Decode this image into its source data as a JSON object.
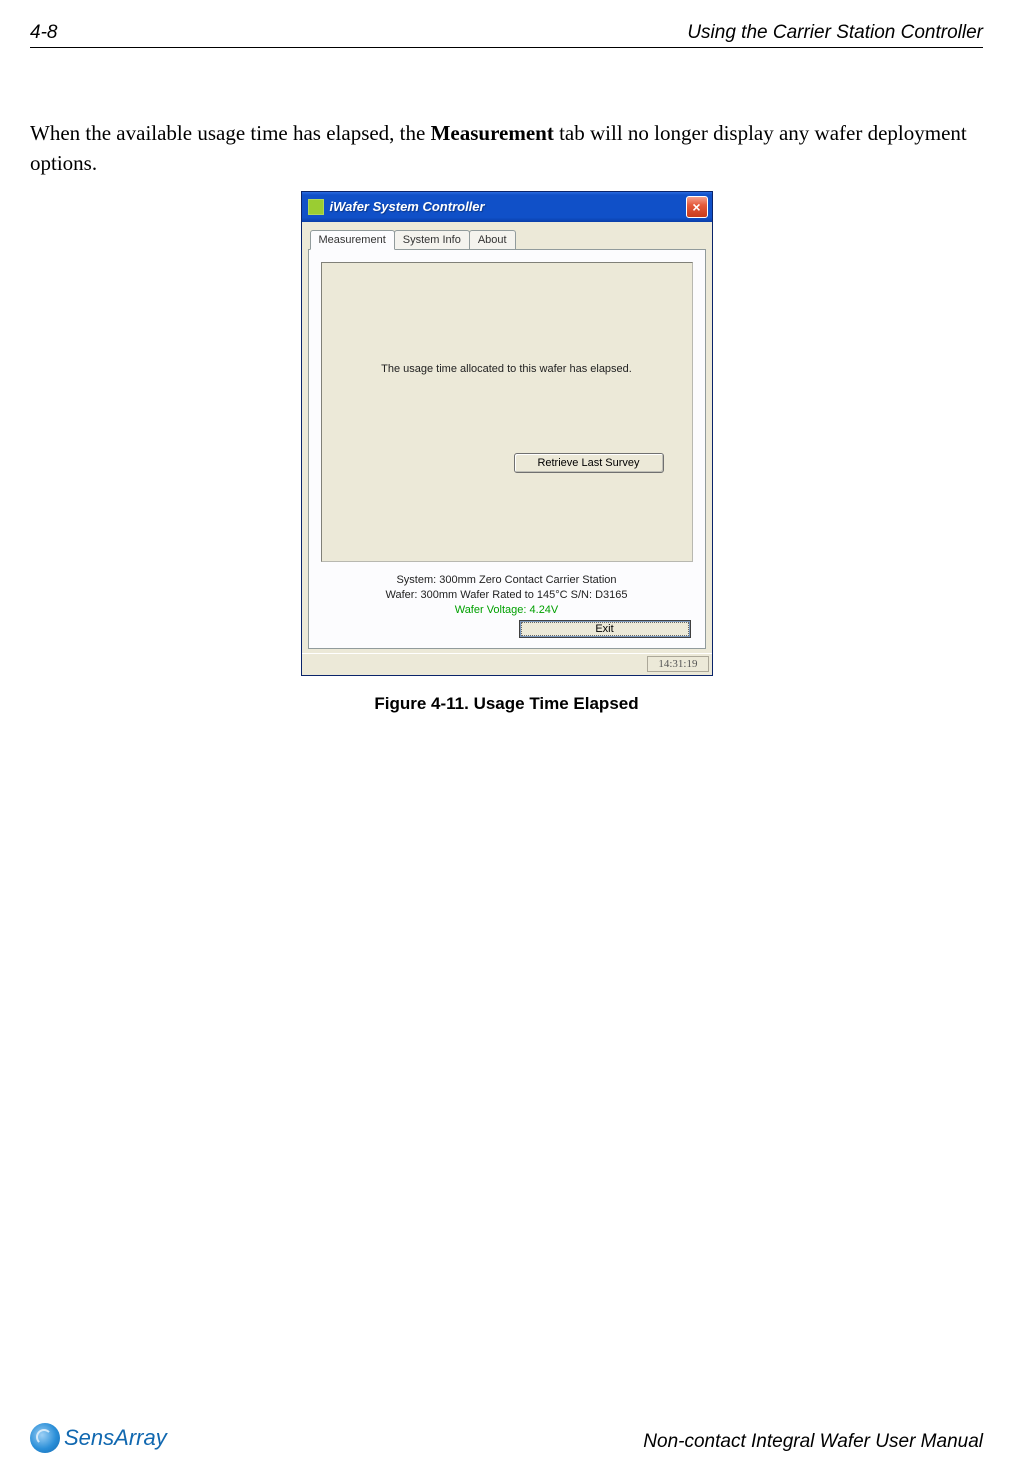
{
  "header": {
    "page_number": "4-8",
    "section_title": "Using the Carrier Station Controller"
  },
  "body": {
    "para_prefix": "When the available usage time has elapsed, the ",
    "para_bold": "Measurement",
    "para_suffix": " tab will no longer display any wafer deployment options."
  },
  "window": {
    "title": "iWafer System Controller",
    "tabs": {
      "measurement": "Measurement",
      "system_info": "System Info",
      "about": "About"
    },
    "message": "The usage time allocated to this wafer has elapsed.",
    "retrieve_button": "Retrieve Last Survey",
    "system_line": "System: 300mm Zero Contact Carrier Station",
    "wafer_line": "Wafer: 300mm Wafer Rated to 145°C S/N: D3165",
    "voltage_line": "Wafer Voltage: 4.24V",
    "exit_button": "Exit",
    "status_time": "14:31:19"
  },
  "caption": "Figure 4-11. Usage Time Elapsed",
  "footer": {
    "logo_text": "SensArray",
    "manual_title": "Non-contact Integral Wafer User Manual"
  },
  "colors": {
    "titlebar_start": "#2a6bdf",
    "titlebar_end": "#0a3ea8",
    "close_btn": "#e55b3c",
    "win_bg": "#ece9d8",
    "tab_active_bg": "#fcfcfe",
    "voltage_color": "#00a000",
    "logo_color": "#1168b0"
  }
}
